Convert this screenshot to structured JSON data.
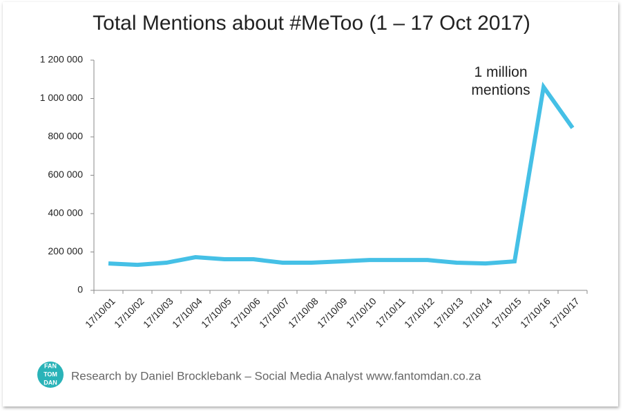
{
  "chart_data": {
    "type": "line",
    "title": "Total Mentions about #MeToo (1 – 17 Oct 2017)",
    "categories": [
      "17/10/01",
      "17/10/02",
      "17/10/03",
      "17/10/04",
      "17/10/05",
      "17/10/06",
      "17/10/07",
      "17/10/08",
      "17/10/09",
      "17/10/10",
      "17/10/11",
      "17/10/12",
      "17/10/13",
      "17/10/14",
      "17/10/15",
      "17/10/16",
      "17/10/17"
    ],
    "values": [
      140000,
      133000,
      144000,
      173000,
      162000,
      162000,
      144000,
      144000,
      151000,
      158000,
      158000,
      158000,
      144000,
      140000,
      151000,
      1060000,
      847000
    ],
    "color": "#45c0e6",
    "ylim": [
      0,
      1200000
    ],
    "yticks": [
      0,
      {
        "value": 200000,
        "label": "200 000"
      },
      {
        "value": 400000,
        "label": "400 000"
      },
      {
        "value": 600000,
        "label": "600 000"
      },
      {
        "value": 800000,
        "label": "800 000"
      },
      {
        "value": 1000000,
        "label": "1 000 000"
      },
      {
        "value": 1200000,
        "label": "1 200 000"
      }
    ],
    "grid": false,
    "annotation": "1 million mentions"
  },
  "footer": {
    "logo": [
      "FAN",
      "TOM",
      "DAN"
    ],
    "credit": "Research by Daniel Brocklebank – Social Media Analyst www.fantomdan.co.za"
  }
}
